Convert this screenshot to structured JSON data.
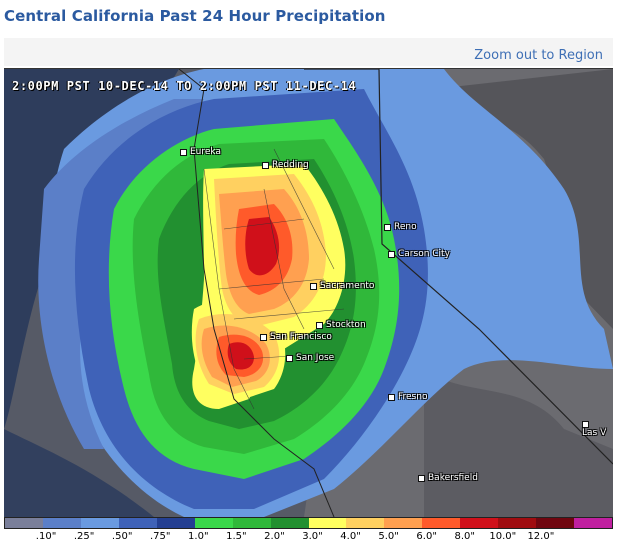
{
  "page": {
    "title": "Central California Past 24 Hour Precipitation"
  },
  "toolbar": {
    "zoom_label": "Zoom out to Region"
  },
  "map": {
    "date_range": "2:00PM PST 10-DEC-14 TO 2:00PM PST 11-DEC-14",
    "cities": [
      "Eureka",
      "Redding",
      "Reno",
      "Carson City",
      "Sacramento",
      "Stockton",
      "San Francisco",
      "San Jose",
      "Fresno",
      "Bakersfield",
      "Las V"
    ]
  },
  "legend": {
    "colors": [
      "#7a7f9a",
      "#5b7fc8",
      "#6a9ae0",
      "#3f62b8",
      "#243f92",
      "#3ad84a",
      "#30b83a",
      "#229030",
      "#ffff60",
      "#ffd060",
      "#ffa050",
      "#ff5a2a",
      "#d0101a",
      "#a00c10",
      "#700610",
      "#c020a0"
    ],
    "labels": [
      ".10\"",
      ".25\"",
      ".50\"",
      ".75\"",
      "1.0\"",
      "1.5\"",
      "2.0\"",
      "3.0\"",
      "4.0\"",
      "5.0\"",
      "6.0\"",
      "8.0\"",
      "10.0\"",
      "12.0\""
    ]
  }
}
